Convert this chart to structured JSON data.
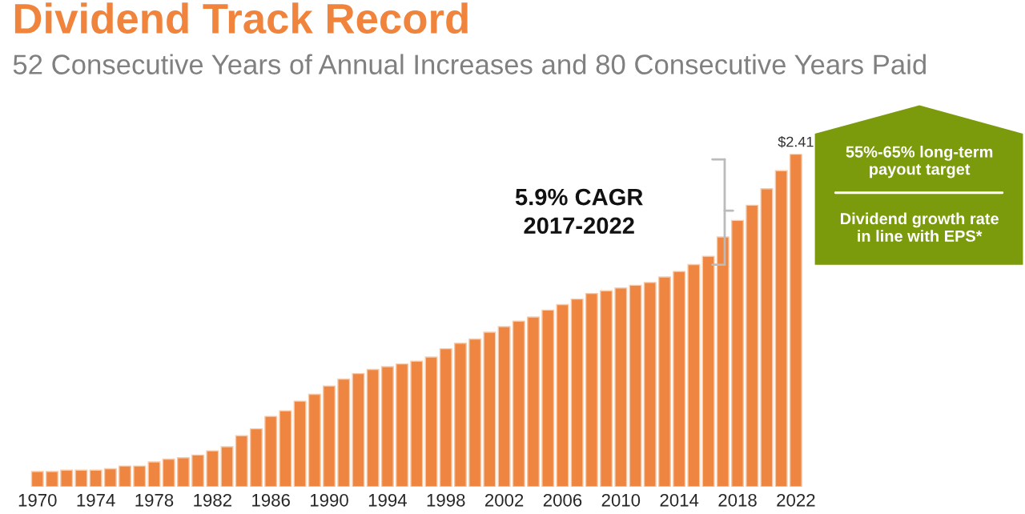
{
  "chart_data": {
    "type": "bar",
    "title": "Dividend Track Record",
    "subtitle": "52 Consecutive Years of Annual Increases and 80 Consecutive Years Paid",
    "categories": [
      "1970",
      null,
      null,
      null,
      "1974",
      null,
      null,
      null,
      "1978",
      null,
      null,
      null,
      "1982",
      null,
      null,
      null,
      "1986",
      null,
      null,
      null,
      "1990",
      null,
      null,
      null,
      "1994",
      null,
      null,
      null,
      "1998",
      null,
      null,
      null,
      "2002",
      null,
      null,
      null,
      "2006",
      null,
      null,
      null,
      "2010",
      null,
      null,
      null,
      "2014",
      null,
      null,
      null,
      "2018",
      null,
      null,
      null,
      "2022"
    ],
    "values": [
      0.11,
      0.11,
      0.12,
      0.12,
      0.12,
      0.13,
      0.15,
      0.15,
      0.18,
      0.2,
      0.21,
      0.23,
      0.26,
      0.29,
      0.37,
      0.42,
      0.51,
      0.55,
      0.62,
      0.67,
      0.73,
      0.78,
      0.82,
      0.85,
      0.87,
      0.89,
      0.91,
      0.94,
      1.0,
      1.04,
      1.07,
      1.12,
      1.16,
      1.2,
      1.23,
      1.28,
      1.32,
      1.36,
      1.4,
      1.42,
      1.44,
      1.46,
      1.48,
      1.52,
      1.56,
      1.61,
      1.67,
      1.81,
      1.93,
      2.04,
      2.16,
      2.29,
      2.41
    ],
    "color": "#ee8540",
    "value_labels": [
      null,
      null,
      null,
      null,
      null,
      null,
      null,
      null,
      null,
      null,
      null,
      null,
      null,
      null,
      null,
      null,
      null,
      null,
      null,
      null,
      null,
      null,
      null,
      null,
      null,
      null,
      null,
      null,
      null,
      null,
      null,
      null,
      null,
      null,
      null,
      null,
      null,
      null,
      null,
      null,
      null,
      null,
      null,
      null,
      null,
      null,
      null,
      null,
      null,
      null,
      null,
      null,
      "$2.41"
    ],
    "annotations": [
      "5.9% CAGR\n2017-2022",
      "55%-65% long-term\npayout target",
      "Dividend growth rate\nin line with EPS*"
    ],
    "grid": false,
    "legend": false
  }
}
